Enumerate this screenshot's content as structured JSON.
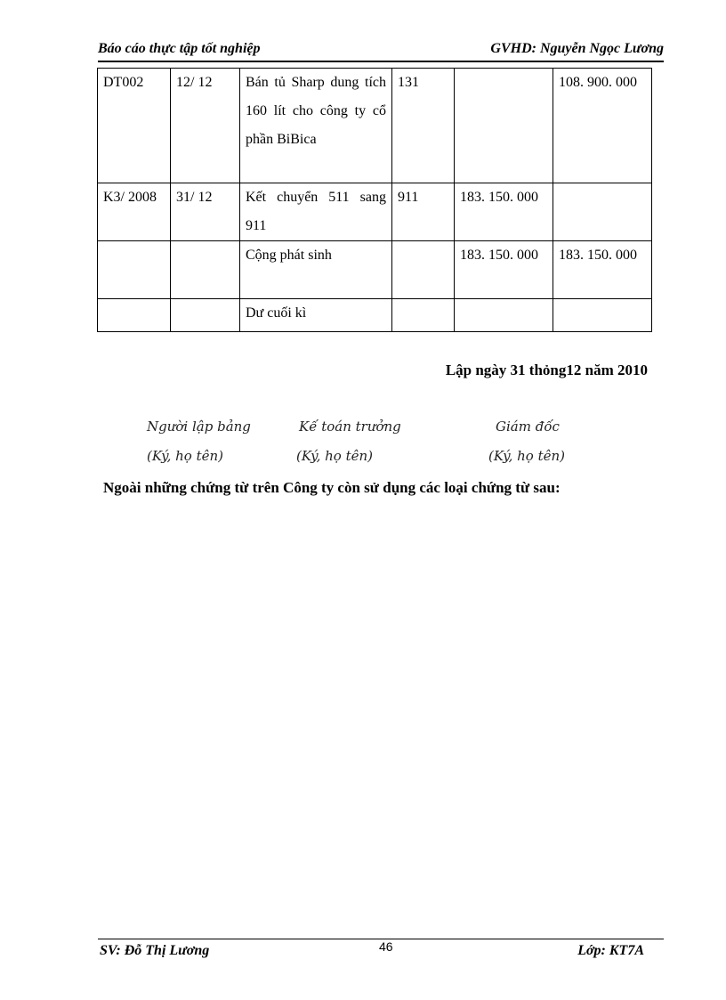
{
  "header": {
    "left": "Báo cáo thực tập tốt nghiệp",
    "right": "GVHD:  Nguyễn  Ngọc  Lương"
  },
  "table": {
    "rows": [
      [
        "DT002",
        "12/ 12",
        "Bán tủ Sharp dung tích 160 lít cho công ty cổ phần BiBica",
        "131",
        "",
        "108. 900. 000"
      ],
      [
        "K3/ 2008",
        "31/ 12",
        "Kết chuyển 511 sang 911",
        "911",
        "183. 150. 000",
        ""
      ],
      [
        "",
        "",
        "Cộng phát sinh",
        "",
        "183. 150. 000",
        "183. 150. 000"
      ],
      [
        "",
        "",
        "Dư cuối kì",
        "",
        "",
        ""
      ]
    ]
  },
  "date_line": "Lập ngày 31 thỏng12 năm  2010",
  "signatures": [
    {
      "title": "Người lập bảng",
      "note": "(Ký, họ tên)"
    },
    {
      "title": "Kế toán trưởng",
      "note": "(Ký, họ tên)"
    },
    {
      "title": "Giám đốc",
      "note": "(Ký, họ tên)"
    }
  ],
  "paragraph": "Ngoài những chứng từ trên Công ty còn sử dụng các loại  chứng từ sau:",
  "footer": {
    "left": "SV:  Đỗ  Thị  Lương",
    "page": "46",
    "right": "Lớp:  KT7A"
  }
}
